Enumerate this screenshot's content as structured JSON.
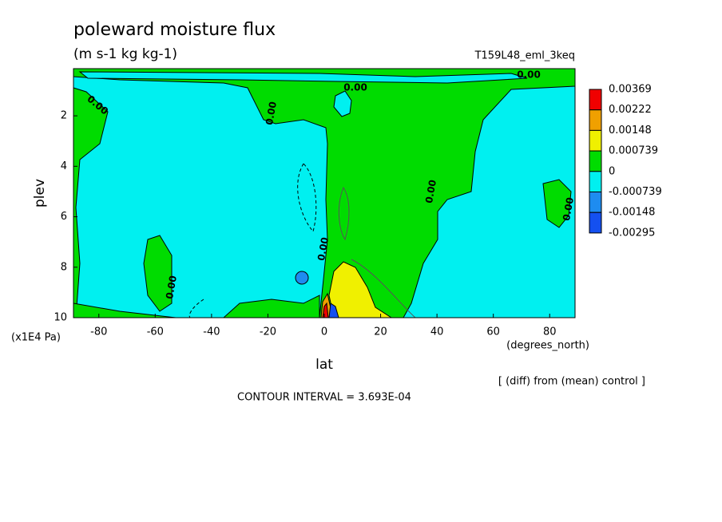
{
  "chart_data": {
    "type": "contour",
    "title": "poleward moisture flux",
    "subtitle": "(m s-1 kg kg-1)",
    "run_label": "T159L48_eml_3keq",
    "xlabel": "lat",
    "xunit": "(degrees_north)",
    "ylabel": "plev",
    "yunit": "(x1E4 Pa)",
    "note": "[ (diff) from (mean) control ]",
    "contour_interval": "CONTOUR INTERVAL = 3.693E-04",
    "xlim": [
      -89,
      89
    ],
    "xticks": [
      -80,
      -60,
      -40,
      -20,
      0,
      20,
      40,
      60,
      80
    ],
    "ylim": [
      10,
      0.13
    ],
    "yticks": [
      2,
      4,
      6,
      8,
      10
    ],
    "colorbar": {
      "levels": [
        0.00369,
        0.00222,
        0.00148,
        0.000739,
        0,
        -0.000739,
        -0.00148,
        -0.00295
      ],
      "colors": [
        "#f00000",
        "#f0a000",
        "#f0f000",
        "#00dc00",
        "#00f0f0",
        "#1e8cf0",
        "#1450f0"
      ]
    },
    "contour_labels": [
      "0.00",
      "0.00",
      "0.00",
      "0.00",
      "0.00",
      "0.00",
      "0.00",
      "0.00"
    ]
  }
}
